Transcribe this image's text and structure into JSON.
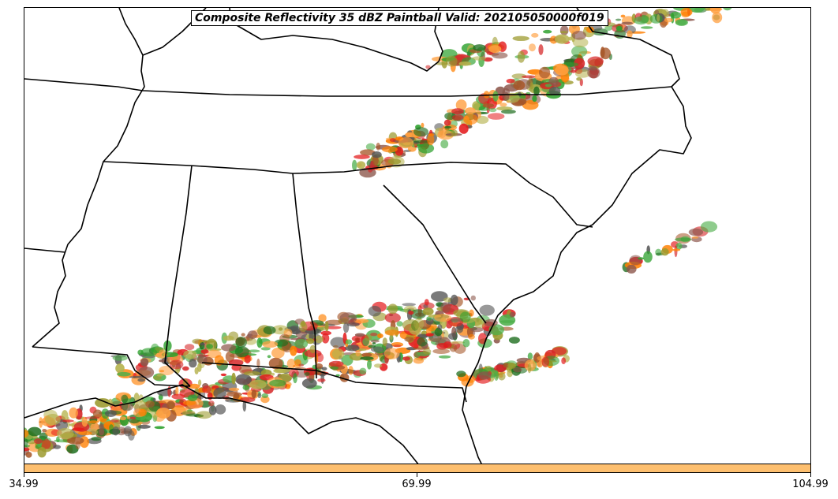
{
  "title": "Composite Reflectivity 35 dBZ Paintball Valid: 202105050000f019",
  "colors": {
    "member_palette": [
      "#e41a1c",
      "#ff7f00",
      "#4daf4a",
      "#2ca02c",
      "#8c564b",
      "#a65628",
      "#9c9a2e",
      "#b5b24c",
      "#ff9f3f",
      "#555555",
      "#1f6e1f",
      "#d62728"
    ],
    "colorbar_fill": "#fdbf6f",
    "state_lines": "#000000"
  },
  "colorbar": {
    "tick_labels": [
      "34.99",
      "69.99",
      "104.99"
    ]
  }
}
